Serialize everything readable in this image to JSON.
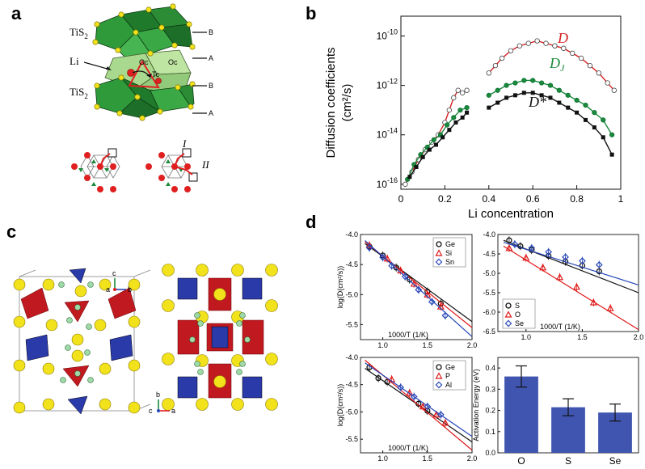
{
  "panels": {
    "a": {
      "label": "a",
      "layer_labels": [
        "TiS",
        "Li",
        "TiS"
      ],
      "subscripts": [
        "2",
        "2"
      ],
      "site_labels": [
        "Oc",
        "Oc",
        "Tc"
      ],
      "stack_labels": [
        "B",
        "A",
        "B",
        "A"
      ],
      "path_labels": [
        "I",
        "II"
      ]
    },
    "b": {
      "label": "b"
    },
    "c": {
      "label": "c",
      "axis_labels": [
        "c",
        "a",
        "b",
        "b",
        "c",
        "a"
      ]
    },
    "d": {
      "label": "d"
    }
  },
  "chart_data": [
    {
      "id": "b-main",
      "type": "scatter",
      "xlabel": "Li concentration",
      "ylabel": "Diffusion coefficients",
      "ylabel_unit": "(cm²/s)",
      "xlim": [
        0,
        1
      ],
      "ylim_log10": [
        -16.2,
        -9.2
      ],
      "log_y": true,
      "x_ticks": [
        "0",
        "0.2",
        "0.4",
        "0.6",
        "0.8",
        "1"
      ],
      "y_tick_exponents": [
        "-16",
        "-14",
        "-12",
        "-10"
      ],
      "y_tick_base": "10",
      "curve_labels": [
        {
          "text": "D",
          "color": "#d62020"
        },
        {
          "text": "D",
          "sub": "J",
          "color": "#1a8a3a"
        },
        {
          "text": "D*",
          "color": "#111111"
        }
      ],
      "series": [
        {
          "name": "D",
          "color": "#d62020",
          "marker": "open-circle",
          "x": [
            0.02,
            0.05,
            0.08,
            0.11,
            0.14,
            0.17,
            0.2,
            0.22,
            0.24,
            0.26,
            0.28,
            0.3
          ],
          "y": [
            -16.0,
            -15.5,
            -15.0,
            -14.6,
            -14.3,
            -14.0,
            -13.5,
            -13.0,
            -12.5,
            -12.2,
            -12.3,
            -12.2
          ],
          "x2": [
            0.4,
            0.43,
            0.46,
            0.5,
            0.54,
            0.58,
            0.62,
            0.66,
            0.7,
            0.74,
            0.78,
            0.82,
            0.86,
            0.9,
            0.94,
            0.97
          ],
          "y2": [
            -11.5,
            -11.2,
            -10.9,
            -10.6,
            -10.4,
            -10.3,
            -10.2,
            -10.3,
            -10.4,
            -10.5,
            -10.7,
            -10.9,
            -11.2,
            -11.5,
            -11.9,
            -12.2
          ]
        },
        {
          "name": "DJ",
          "color": "#1a8a3a",
          "marker": "filled-circle",
          "x": [
            0.03,
            0.06,
            0.09,
            0.12,
            0.15,
            0.18,
            0.21,
            0.24,
            0.27,
            0.3
          ],
          "y": [
            -15.8,
            -15.2,
            -14.8,
            -14.5,
            -14.2,
            -14.0,
            -13.6,
            -13.3,
            -13.0,
            -12.9
          ],
          "x2": [
            0.4,
            0.44,
            0.48,
            0.52,
            0.56,
            0.6,
            0.64,
            0.68,
            0.72,
            0.76,
            0.8,
            0.84,
            0.88,
            0.92,
            0.96
          ],
          "y2": [
            -12.4,
            -12.2,
            -12.0,
            -11.9,
            -11.8,
            -11.8,
            -11.9,
            -12.0,
            -12.2,
            -12.4,
            -12.6,
            -12.8,
            -13.1,
            -13.4,
            -14.0
          ]
        },
        {
          "name": "D*",
          "color": "#111111",
          "marker": "filled-square",
          "x": [
            0.04,
            0.07,
            0.1,
            0.13,
            0.16,
            0.19,
            0.22,
            0.25,
            0.28,
            0.3
          ],
          "y": [
            -15.7,
            -15.3,
            -14.9,
            -14.6,
            -14.4,
            -14.1,
            -13.8,
            -13.5,
            -13.3,
            -13.1
          ],
          "x2": [
            0.4,
            0.44,
            0.48,
            0.52,
            0.56,
            0.6,
            0.64,
            0.68,
            0.72,
            0.76,
            0.8,
            0.84,
            0.88,
            0.92,
            0.96
          ],
          "y2": [
            -12.9,
            -12.7,
            -12.5,
            -12.4,
            -12.3,
            -12.3,
            -12.4,
            -12.5,
            -12.7,
            -12.9,
            -13.1,
            -13.4,
            -13.7,
            -14.1,
            -14.8
          ]
        }
      ]
    },
    {
      "id": "d1",
      "type": "scatter",
      "xlabel": "1000/T (1/K)",
      "ylabel": "log(D(cm²/s))",
      "xlim": [
        0.75,
        2.0
      ],
      "ylim": [
        -5.75,
        -4.0
      ],
      "x_ticks": [
        "1.0",
        "1.5",
        "2.0"
      ],
      "y_ticks": [
        "-4.0",
        "-4.5",
        "-5.0",
        "-5.5"
      ],
      "series": [
        {
          "name": "Ge",
          "color": "#111111",
          "marker": "o",
          "x": [
            0.85,
            1.0,
            1.15,
            1.3,
            1.5,
            1.65
          ],
          "y": [
            -4.2,
            -4.35,
            -4.55,
            -4.75,
            -4.95,
            -5.15
          ],
          "fit": [
            [
              0.8,
              -4.15
            ],
            [
              2.0,
              -5.45
            ]
          ]
        },
        {
          "name": "Si",
          "color": "#e01818",
          "marker": "^",
          "x": [
            0.85,
            1.05,
            1.2,
            1.35,
            1.5,
            1.65
          ],
          "y": [
            -4.18,
            -4.4,
            -4.6,
            -4.82,
            -5.0,
            -5.2
          ],
          "fit": [
            [
              0.8,
              -4.12
            ],
            [
              2.0,
              -5.55
            ]
          ]
        },
        {
          "name": "Sn",
          "color": "#2646b8",
          "marker": "d",
          "x": [
            0.85,
            1.0,
            1.1,
            1.25,
            1.4,
            1.55,
            1.7
          ],
          "y": [
            -4.22,
            -4.38,
            -4.52,
            -4.7,
            -4.92,
            -5.12,
            -5.35
          ],
          "fit": [
            [
              0.8,
              -4.1
            ],
            [
              2.0,
              -5.7
            ]
          ]
        }
      ]
    },
    {
      "id": "d2",
      "type": "scatter",
      "xlabel": "1000/T (1/K)",
      "ylabel": "",
      "xlim": [
        0.75,
        2.0
      ],
      "ylim": [
        -6.5,
        -4.0
      ],
      "x_ticks": [
        "1.0",
        "1.5",
        "2.0"
      ],
      "y_ticks": [
        "-4.0",
        "-4.5",
        "-5.0",
        "-5.5",
        "-6.0",
        "-6.5"
      ],
      "series": [
        {
          "name": "S",
          "color": "#111111",
          "marker": "o",
          "x": [
            0.85,
            0.95,
            1.05,
            1.2,
            1.35,
            1.5,
            1.65
          ],
          "y": [
            -4.15,
            -4.3,
            -4.4,
            -4.55,
            -4.7,
            -4.8,
            -4.95
          ],
          "fit": [
            [
              0.8,
              -4.15
            ],
            [
              2.0,
              -5.5
            ]
          ]
        },
        {
          "name": "O",
          "color": "#e01818",
          "marker": "^",
          "x": [
            0.85,
            1.0,
            1.15,
            1.3,
            1.45,
            1.6,
            1.75
          ],
          "y": [
            -4.35,
            -4.6,
            -4.85,
            -5.1,
            -5.35,
            -5.75,
            -5.9
          ],
          "fit": [
            [
              0.8,
              -4.3
            ],
            [
              2.0,
              -6.45
            ]
          ]
        },
        {
          "name": "Se",
          "color": "#2646b8",
          "marker": "d",
          "x": [
            0.9,
            1.05,
            1.2,
            1.35,
            1.5,
            1.65
          ],
          "y": [
            -4.25,
            -4.35,
            -4.45,
            -4.58,
            -4.68,
            -4.78
          ],
          "fit": [
            [
              0.8,
              -4.2
            ],
            [
              2.0,
              -5.3
            ]
          ]
        }
      ]
    },
    {
      "id": "d3",
      "type": "scatter",
      "xlabel": "1000/T (1/K)",
      "ylabel": "log(D(cm²/s))",
      "xlim": [
        0.75,
        2.0
      ],
      "ylim": [
        -5.75,
        -4.0
      ],
      "x_ticks": [
        "1.0",
        "1.5",
        "2.0"
      ],
      "y_ticks": [
        "-4.0",
        "-4.5",
        "-5.0",
        "-5.5"
      ],
      "series": [
        {
          "name": "Ge",
          "color": "#111111",
          "marker": "o",
          "x": [
            0.85,
            0.95,
            1.05,
            1.4,
            1.5
          ],
          "y": [
            -4.18,
            -4.38,
            -4.45,
            -4.85,
            -4.98
          ],
          "fit": [
            [
              0.8,
              -4.2
            ],
            [
              2.0,
              -5.55
            ]
          ]
        },
        {
          "name": "P",
          "color": "#e01818",
          "marker": "^",
          "x": [
            1.1,
            1.3,
            1.45,
            1.6,
            1.7
          ],
          "y": [
            -4.4,
            -4.65,
            -4.9,
            -5.05,
            -5.2
          ],
          "fit": [
            [
              0.8,
              -4.05
            ],
            [
              2.0,
              -5.7
            ]
          ]
        },
        {
          "name": "Al",
          "color": "#2646b8",
          "marker": "d",
          "x": [
            1.2,
            1.35,
            1.5,
            1.65
          ],
          "y": [
            -4.55,
            -4.72,
            -4.9,
            -5.05
          ],
          "fit": [
            [
              0.8,
              -4.1
            ],
            [
              2.0,
              -5.45
            ]
          ]
        }
      ]
    },
    {
      "id": "d4",
      "type": "bar",
      "categories": [
        "O",
        "S",
        "Se"
      ],
      "values": [
        0.36,
        0.215,
        0.19
      ],
      "errors": [
        0.05,
        0.04,
        0.04
      ],
      "ylabel": "Activation Energy (eV)",
      "ylim": [
        0,
        0.45
      ],
      "y_ticks": [
        "0.0",
        "0.1",
        "0.2",
        "0.3",
        "0.4"
      ],
      "color": "#3f55b0"
    }
  ]
}
